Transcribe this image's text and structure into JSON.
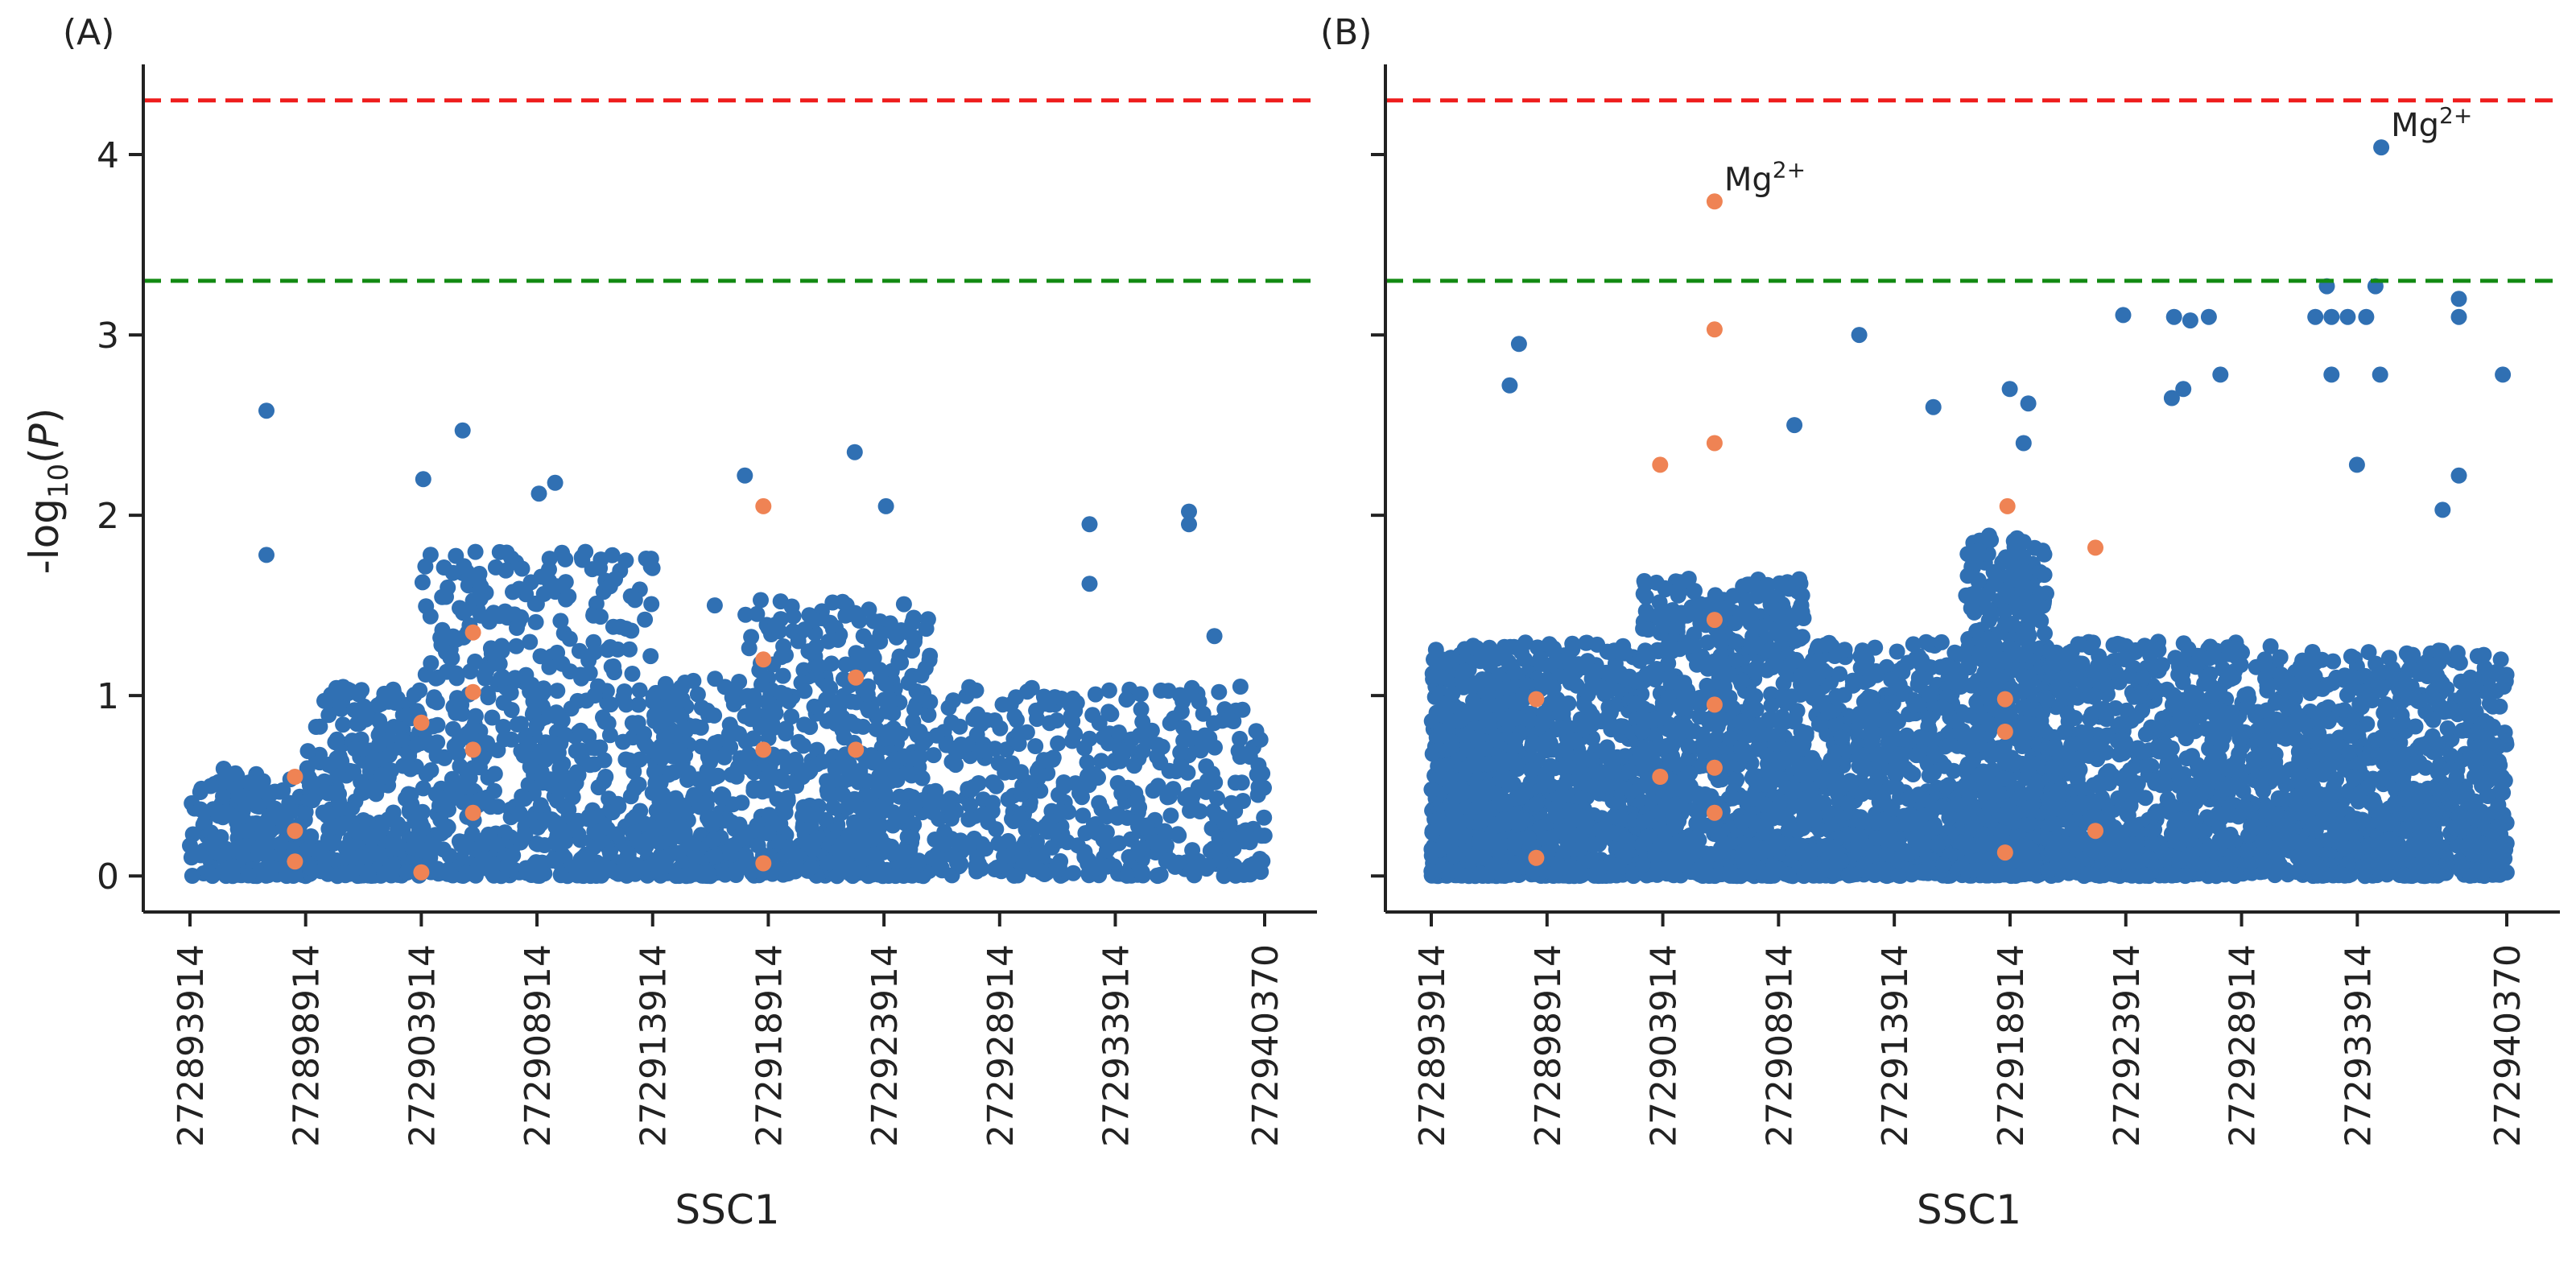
{
  "figure": {
    "ylabel": "-log10(P)",
    "threshold_colors": {
      "red": "#ee1c1c",
      "green": "#138a13"
    },
    "point_colors": {
      "main": "#3070b3",
      "highlight": "#ef8354"
    }
  },
  "chart_data": [
    {
      "panel": "(A)",
      "type": "scatter",
      "xlabel": "SSC1",
      "ylabel": "-log10(P)",
      "xlim": [
        272893914,
        272940370
      ],
      "ylim": [
        -0.2,
        4.5
      ],
      "xticks": [
        272893914,
        272898914,
        272903914,
        272908914,
        272913914,
        272918914,
        272923914,
        272928914,
        272933914,
        272940370
      ],
      "yticks": [
        0,
        1,
        2,
        3,
        4
      ],
      "thresholds": [
        {
          "y": 4.3,
          "color": "red"
        },
        {
          "y": 3.3,
          "color": "green"
        }
      ],
      "annotations": [],
      "highlight_points": [
        {
          "x": 272898450,
          "y": 0.55
        },
        {
          "x": 272898450,
          "y": 0.25
        },
        {
          "x": 272898450,
          "y": 0.08
        },
        {
          "x": 272903914,
          "y": 0.85
        },
        {
          "x": 272903914,
          "y": 0.02
        },
        {
          "x": 272906150,
          "y": 1.35
        },
        {
          "x": 272906150,
          "y": 1.02
        },
        {
          "x": 272906150,
          "y": 0.7
        },
        {
          "x": 272906150,
          "y": 0.35
        },
        {
          "x": 272918700,
          "y": 2.05
        },
        {
          "x": 272918700,
          "y": 1.2
        },
        {
          "x": 272918700,
          "y": 0.7
        },
        {
          "x": 272918700,
          "y": 0.07
        },
        {
          "x": 272922700,
          "y": 1.1
        },
        {
          "x": 272922700,
          "y": 0.7
        }
      ],
      "density": [
        {
          "from": 272893914,
          "to": 272898914,
          "max": 0.6,
          "n": 200
        },
        {
          "from": 272898914,
          "to": 272903914,
          "max": 1.05,
          "n": 300
        },
        {
          "from": 272903914,
          "to": 272913914,
          "max": 1.8,
          "n": 600
        },
        {
          "from": 272913914,
          "to": 272917914,
          "max": 1.1,
          "n": 250
        },
        {
          "from": 272917914,
          "to": 272925914,
          "max": 1.55,
          "n": 550
        },
        {
          "from": 272925914,
          "to": 272940370,
          "max": 1.05,
          "n": 500
        }
      ],
      "outliers": [
        {
          "x": 272897220,
          "y": 2.58
        },
        {
          "x": 272897220,
          "y": 1.78
        },
        {
          "x": 272904000,
          "y": 2.2
        },
        {
          "x": 272905700,
          "y": 2.47
        },
        {
          "x": 272909000,
          "y": 2.12
        },
        {
          "x": 272909700,
          "y": 2.18
        },
        {
          "x": 272916600,
          "y": 1.5
        },
        {
          "x": 272917900,
          "y": 2.22
        },
        {
          "x": 272922650,
          "y": 2.35
        },
        {
          "x": 272924000,
          "y": 2.05
        },
        {
          "x": 272932800,
          "y": 1.95
        },
        {
          "x": 272932800,
          "y": 1.62
        },
        {
          "x": 272937100,
          "y": 2.02
        },
        {
          "x": 272937100,
          "y": 1.95
        },
        {
          "x": 272938200,
          "y": 1.33
        }
      ]
    },
    {
      "panel": "(B)",
      "type": "scatter",
      "xlabel": "SSC1",
      "ylabel": "-log10(P)",
      "xlim": [
        272893914,
        272940370
      ],
      "ylim": [
        -0.2,
        4.5
      ],
      "xticks": [
        272893914,
        272898914,
        272903914,
        272908914,
        272913914,
        272918914,
        272923914,
        272928914,
        272933914,
        272940370
      ],
      "yticks": [
        0,
        1,
        2,
        3,
        4
      ],
      "thresholds": [
        {
          "y": 4.3,
          "color": "red"
        },
        {
          "y": 3.3,
          "color": "green"
        }
      ],
      "annotations": [
        {
          "x": 272906150,
          "y": 3.74,
          "text": "Mg",
          "sup": "2+"
        },
        {
          "x": 272934950,
          "y": 4.04,
          "text": "Mg",
          "sup": "2+"
        }
      ],
      "highlight_points": [
        {
          "x": 272906150,
          "y": 3.74
        },
        {
          "x": 272906150,
          "y": 3.03
        },
        {
          "x": 272906150,
          "y": 2.4
        },
        {
          "x": 272906150,
          "y": 1.42
        },
        {
          "x": 272906150,
          "y": 0.95
        },
        {
          "x": 272906150,
          "y": 0.6
        },
        {
          "x": 272906150,
          "y": 0.35
        },
        {
          "x": 272903800,
          "y": 2.28
        },
        {
          "x": 272903800,
          "y": 0.55
        },
        {
          "x": 272898450,
          "y": 0.98
        },
        {
          "x": 272898450,
          "y": 0.1
        },
        {
          "x": 272918800,
          "y": 2.05
        },
        {
          "x": 272918700,
          "y": 0.98
        },
        {
          "x": 272918700,
          "y": 0.8
        },
        {
          "x": 272918700,
          "y": 0.13
        },
        {
          "x": 272922600,
          "y": 1.82
        },
        {
          "x": 272922600,
          "y": 0.25
        }
      ],
      "density": [
        {
          "from": 272893914,
          "to": 272897500,
          "max": 1.28,
          "n": 700
        },
        {
          "from": 272897500,
          "to": 272903000,
          "max": 1.3,
          "n": 600
        },
        {
          "from": 272903000,
          "to": 272910000,
          "max": 1.65,
          "n": 900
        },
        {
          "from": 272910000,
          "to": 272917000,
          "max": 1.3,
          "n": 700
        },
        {
          "from": 272917000,
          "to": 272920500,
          "max": 1.9,
          "n": 600
        },
        {
          "from": 272920500,
          "to": 272930500,
          "max": 1.3,
          "n": 900
        },
        {
          "from": 272930500,
          "to": 272940370,
          "max": 1.25,
          "n": 900
        }
      ],
      "outliers": [
        {
          "x": 272897300,
          "y": 2.72
        },
        {
          "x": 272897700,
          "y": 2.95
        },
        {
          "x": 272909600,
          "y": 2.5
        },
        {
          "x": 272912400,
          "y": 3.0
        },
        {
          "x": 272915600,
          "y": 2.6
        },
        {
          "x": 272918900,
          "y": 2.7
        },
        {
          "x": 272919700,
          "y": 2.62
        },
        {
          "x": 272919500,
          "y": 2.4
        },
        {
          "x": 272923800,
          "y": 3.11
        },
        {
          "x": 272926000,
          "y": 3.1
        },
        {
          "x": 272926700,
          "y": 3.08
        },
        {
          "x": 272927500,
          "y": 3.1
        },
        {
          "x": 272925900,
          "y": 2.65
        },
        {
          "x": 272926400,
          "y": 2.7
        },
        {
          "x": 272928000,
          "y": 2.78
        },
        {
          "x": 272932100,
          "y": 3.1
        },
        {
          "x": 272932800,
          "y": 3.1
        },
        {
          "x": 272933500,
          "y": 3.1
        },
        {
          "x": 272934300,
          "y": 3.1
        },
        {
          "x": 272932600,
          "y": 3.27
        },
        {
          "x": 272934700,
          "y": 3.27
        },
        {
          "x": 272932800,
          "y": 2.78
        },
        {
          "x": 272934900,
          "y": 2.78
        },
        {
          "x": 272933900,
          "y": 2.28
        },
        {
          "x": 272934950,
          "y": 4.04
        },
        {
          "x": 272938300,
          "y": 3.2
        },
        {
          "x": 272938300,
          "y": 3.1
        },
        {
          "x": 272938300,
          "y": 2.22
        },
        {
          "x": 272940200,
          "y": 2.78
        },
        {
          "x": 272937600,
          "y": 2.03
        }
      ]
    }
  ]
}
